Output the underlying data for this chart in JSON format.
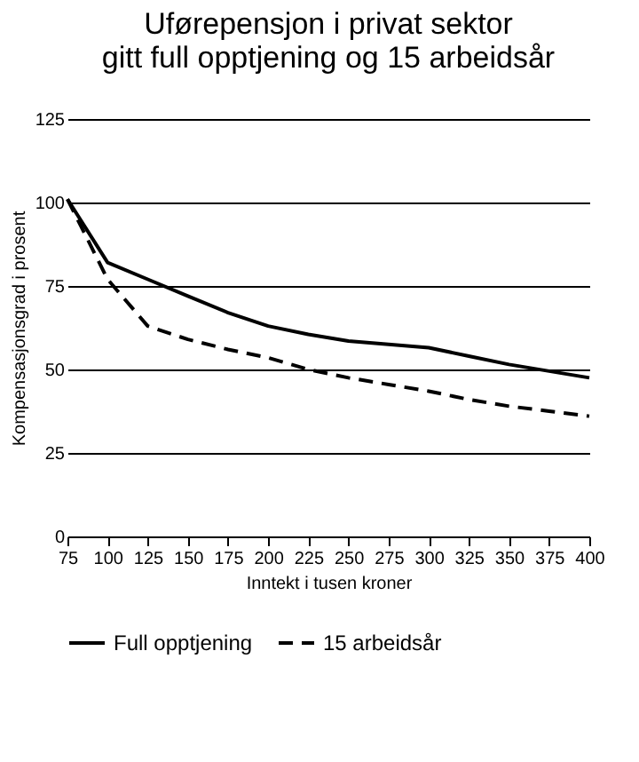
{
  "chart_data": {
    "type": "line",
    "title": [
      "Uførepensjon i privat sektor",
      "gitt full opptjening og 15 arbeidsår"
    ],
    "xlabel": "Inntekt i tusen kroner",
    "ylabel": "Kompensasjonsgrad i prosent",
    "x": [
      75,
      100,
      125,
      150,
      175,
      200,
      225,
      250,
      275,
      300,
      325,
      350,
      375,
      400
    ],
    "series": [
      {
        "name": "Full opptjening",
        "color": "#000000",
        "line_style": "solid",
        "values": [
          101,
          82,
          77,
          72,
          67,
          63,
          60.5,
          58.5,
          57.5,
          56.5,
          54,
          51.5,
          49.5,
          47.5
        ]
      },
      {
        "name": "15 arbeidsår",
        "color": "#000000",
        "line_style": "dashed",
        "values": [
          101,
          77,
          63,
          59,
          56,
          53.5,
          50,
          47.5,
          45.5,
          43.5,
          41,
          39,
          37.5,
          36
        ]
      }
    ],
    "xlim": [
      75,
      400
    ],
    "xticks": [
      75,
      100,
      125,
      150,
      175,
      200,
      225,
      250,
      275,
      300,
      325,
      350,
      375,
      400
    ],
    "ylim": [
      0,
      125
    ],
    "yticks": [
      0,
      25,
      50,
      75,
      100,
      125
    ],
    "grid": "y",
    "legend": "bottom",
    "marker": "none"
  }
}
